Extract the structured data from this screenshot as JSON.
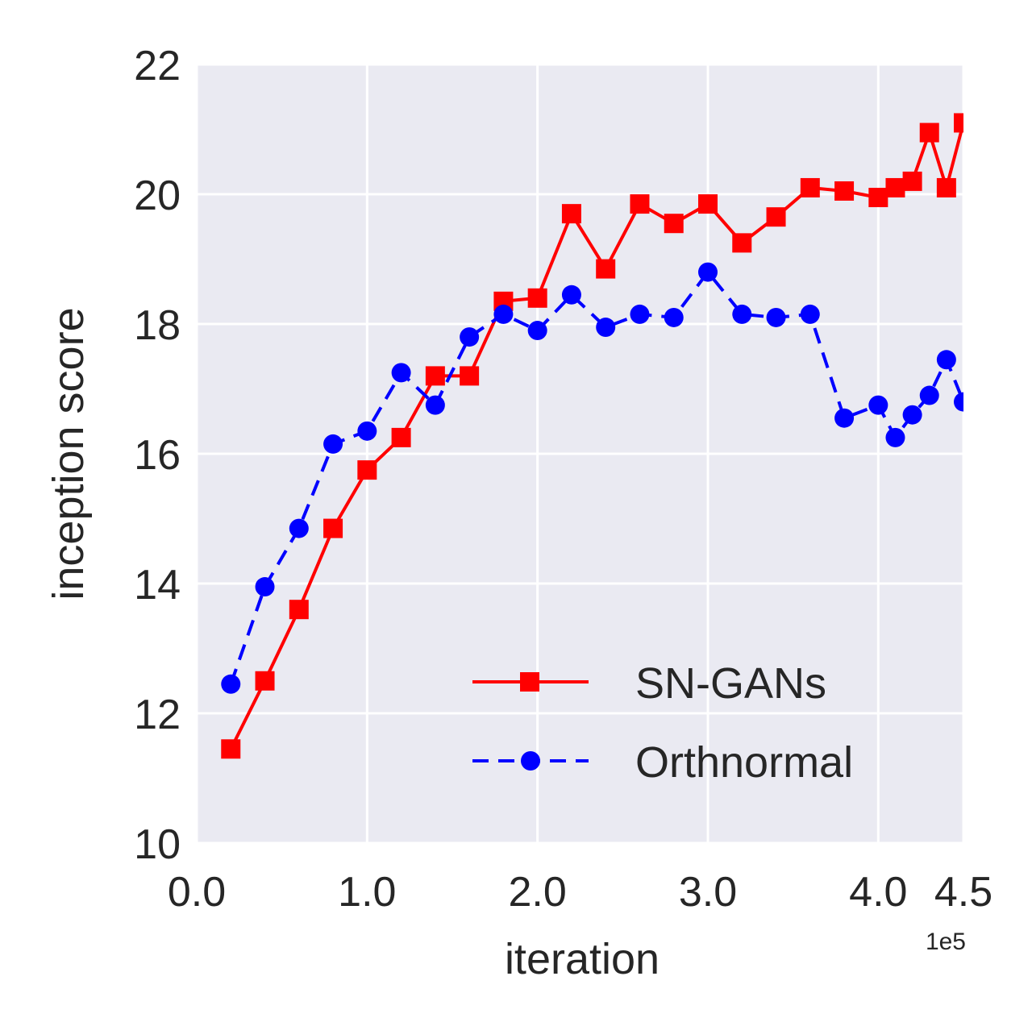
{
  "chart_data": {
    "type": "line",
    "xlabel": "iteration",
    "ylabel": "inception score",
    "x_offset_label": "1e5",
    "xlim": [
      0.0,
      4.5
    ],
    "ylim": [
      10,
      22
    ],
    "xticks": [
      0.0,
      1.0,
      2.0,
      3.0,
      4.0,
      4.5
    ],
    "xtick_labels": [
      "0.0",
      "1.0",
      "2.0",
      "3.0",
      "4.0",
      "4.5"
    ],
    "yticks": [
      10,
      12,
      14,
      16,
      18,
      20,
      22
    ],
    "ytick_labels": [
      "10",
      "12",
      "14",
      "16",
      "18",
      "20",
      "22"
    ],
    "grid": true,
    "legend_position": "lower right",
    "series": [
      {
        "name": "SN-GANs",
        "color": "#ff0000",
        "line": "solid",
        "marker": "square",
        "x": [
          0.2,
          0.4,
          0.6,
          0.8,
          1.0,
          1.2,
          1.4,
          1.6,
          1.8,
          2.0,
          2.2,
          2.4,
          2.6,
          2.8,
          3.0,
          3.2,
          3.4,
          3.6,
          3.8,
          4.0,
          4.1,
          4.2,
          4.3,
          4.4,
          4.5
        ],
        "y": [
          11.45,
          12.5,
          13.6,
          14.85,
          15.75,
          16.25,
          17.2,
          17.2,
          18.35,
          18.4,
          19.7,
          18.85,
          19.85,
          19.55,
          19.85,
          19.25,
          19.65,
          20.1,
          20.05,
          19.95,
          20.1,
          20.2,
          20.95,
          20.1,
          21.1
        ]
      },
      {
        "name": "Orthnormal",
        "color": "#0000ff",
        "line": "dashed",
        "marker": "circle",
        "x": [
          0.2,
          0.4,
          0.6,
          0.8,
          1.0,
          1.2,
          1.4,
          1.6,
          1.8,
          2.0,
          2.2,
          2.4,
          2.6,
          2.8,
          3.0,
          3.2,
          3.4,
          3.6,
          3.8,
          4.0,
          4.1,
          4.2,
          4.3,
          4.4,
          4.5
        ],
        "y": [
          12.45,
          13.95,
          14.85,
          16.15,
          16.35,
          17.25,
          16.75,
          17.8,
          18.15,
          17.9,
          18.45,
          17.95,
          18.15,
          18.1,
          18.8,
          18.15,
          18.1,
          18.15,
          16.55,
          16.75,
          16.25,
          16.6,
          16.9,
          17.45,
          16.8
        ]
      }
    ]
  }
}
